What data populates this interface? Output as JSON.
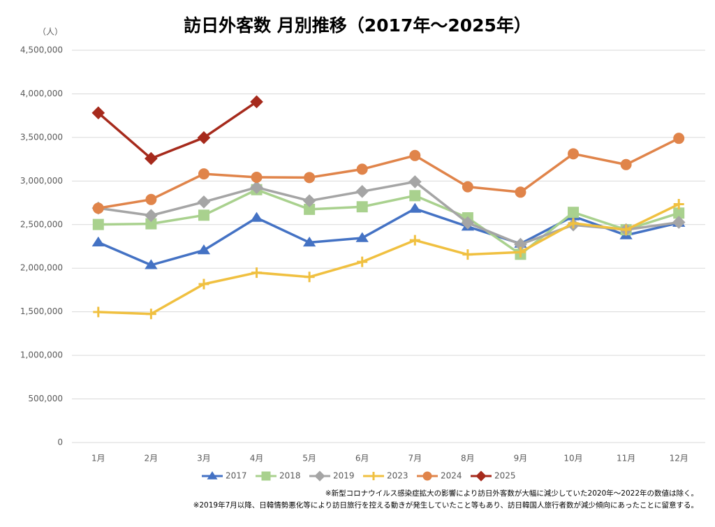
{
  "chart_data": {
    "type": "line",
    "title": "訪日外客数 月別推移（2017年～2025年）",
    "y_unit": "（人）",
    "categories": [
      "1月",
      "2月",
      "3月",
      "4月",
      "5月",
      "6月",
      "7月",
      "8月",
      "9月",
      "10月",
      "11月",
      "12月"
    ],
    "series": [
      {
        "name": "2017",
        "color": "#4472c4",
        "marker": "triangle",
        "values": [
          2295700,
          2035800,
          2205700,
          2578000,
          2294700,
          2346400,
          2682500,
          2477400,
          2280700,
          2595600,
          2378100,
          2521000
        ]
      },
      {
        "name": "2018",
        "color": "#a9d18e",
        "marker": "square",
        "values": [
          2501400,
          2509300,
          2607900,
          2900700,
          2675100,
          2704600,
          2832000,
          2578000,
          2159600,
          2640600,
          2441300,
          2632000
        ]
      },
      {
        "name": "2019",
        "color": "#a5a5a5",
        "marker": "diamond",
        "values": [
          2689300,
          2604300,
          2760100,
          2926700,
          2773100,
          2880100,
          2991200,
          2520100,
          2272900,
          2496600,
          2441300,
          2526400
        ]
      },
      {
        "name": "2023",
        "color": "#f0c040",
        "marker": "plus",
        "values": [
          1497300,
          1475500,
          1817500,
          1949100,
          1899200,
          2073300,
          2320600,
          2156900,
          2184300,
          2516500,
          2440800,
          2734000
        ]
      },
      {
        "name": "2024",
        "color": "#e0844a",
        "marker": "circle",
        "values": [
          2688100,
          2788000,
          3081600,
          3042900,
          3040100,
          3135600,
          3292500,
          2933400,
          2872200,
          3312200,
          3188500,
          3489800
        ]
      },
      {
        "name": "2025",
        "color": "#a62a1c",
        "marker": "diamond",
        "values": [
          3781600,
          3258300,
          3497600,
          3908900,
          null,
          null,
          null,
          null,
          null,
          null,
          null,
          null
        ]
      }
    ],
    "ylim": [
      0,
      4500000
    ],
    "yticks": [
      0,
      {
        "value": 500000,
        "label": "500,000"
      },
      {
        "value": 1000000,
        "label": "1,000,000"
      },
      {
        "value": 1500000,
        "label": "1,500,000"
      },
      {
        "value": 2000000,
        "label": "2,000,000"
      },
      {
        "value": 2500000,
        "label": "2,500,000"
      },
      {
        "value": 3000000,
        "label": "3,000,000"
      },
      {
        "value": 3500000,
        "label": "3,500,000"
      },
      {
        "value": 4000000,
        "label": "4,000,000"
      },
      {
        "value": 4500000,
        "label": "4,500,000"
      }
    ],
    "grid": true,
    "legend": "bottom",
    "notes": [
      "※新型コロナウイルス感染症拡大の影響により訪日外客数が大幅に減少していた2020年～2022年の数値は除く。",
      "※2019年7月以降、日韓情勢悪化等により訪日旅行を控える動きが発生していたこと等もあり、訪日韓国人旅行者数が減少傾向にあったことに留意する。"
    ]
  }
}
